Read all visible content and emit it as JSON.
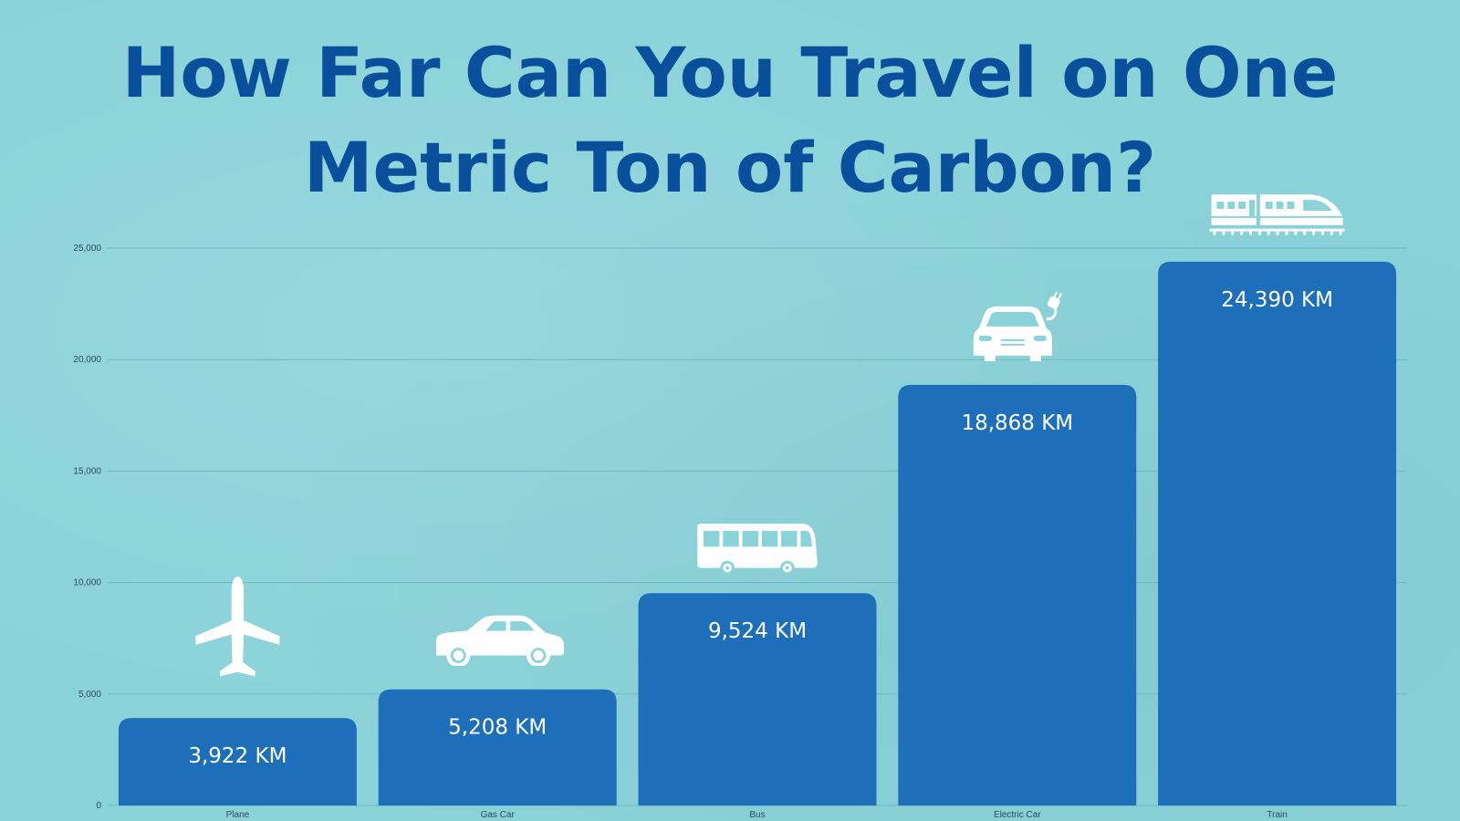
{
  "title": {
    "line1": "How Far Can You Travel on One",
    "line2": "Metric Ton of Carbon?"
  },
  "colors": {
    "background": "#89d3d9",
    "title": "#0a4f9c",
    "bar": "#1e6fba",
    "gridline": "#6fb8c1",
    "bar_label": "#ffffff",
    "icon": "#ffffff"
  },
  "chart_data": {
    "type": "bar",
    "categories": [
      "Plane",
      "Gas Car",
      "Bus",
      "Electric Car",
      "Train"
    ],
    "values": [
      3922,
      5208,
      9524,
      18868,
      24390
    ],
    "bar_labels": [
      "3,922 KM",
      "5,208 KM",
      "9,524 KM",
      "18,868 KM",
      "24,390 KM"
    ],
    "icons": [
      "plane-icon",
      "car-icon",
      "bus-icon",
      "electric-car-icon",
      "train-icon"
    ],
    "y_ticks": [
      0,
      5000,
      10000,
      15000,
      20000,
      25000
    ],
    "y_tick_labels": [
      "0",
      "5,000",
      "10,000",
      "15,000",
      "20,000",
      "25,000"
    ],
    "ylim": [
      0,
      25000
    ],
    "grid": true,
    "legend": "none",
    "xlabel": "",
    "ylabel": ""
  }
}
